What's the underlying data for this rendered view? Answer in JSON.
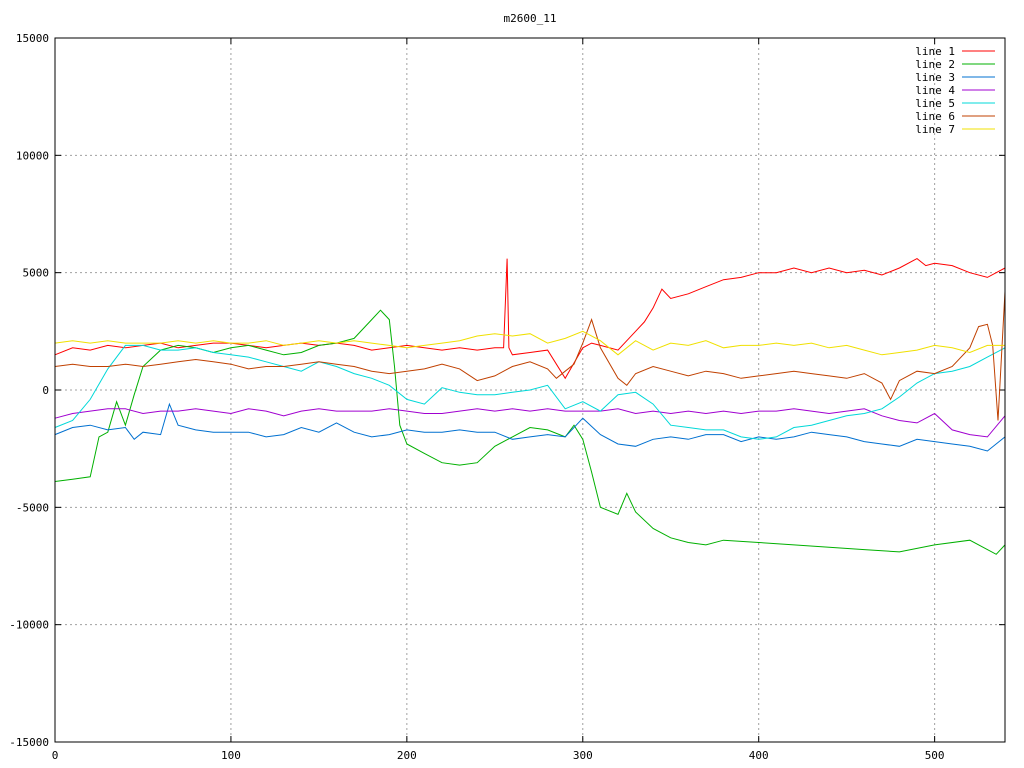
{
  "chart_data": {
    "type": "line",
    "title": "m2600_11",
    "xlabel": "",
    "ylabel": "",
    "xlim": [
      0,
      540
    ],
    "ylim": [
      -15000,
      15000
    ],
    "xticks": [
      0,
      100,
      200,
      300,
      400,
      500
    ],
    "yticks": [
      -15000,
      -10000,
      -5000,
      0,
      5000,
      10000,
      15000
    ],
    "grid": true,
    "legend_position": "top-right",
    "series": [
      {
        "name": "line 1",
        "color": "#ff0000",
        "x": [
          0,
          10,
          20,
          30,
          40,
          50,
          60,
          70,
          80,
          90,
          100,
          110,
          120,
          130,
          140,
          150,
          160,
          170,
          180,
          190,
          200,
          210,
          220,
          230,
          240,
          250,
          255,
          257,
          258,
          260,
          270,
          280,
          290,
          300,
          305,
          310,
          320,
          325,
          330,
          335,
          340,
          345,
          350,
          360,
          370,
          380,
          390,
          400,
          410,
          420,
          430,
          440,
          450,
          460,
          470,
          480,
          490,
          495,
          500,
          510,
          520,
          530,
          540
        ],
        "y": [
          1500,
          1800,
          1700,
          1900,
          1800,
          1900,
          2000,
          1800,
          1900,
          2000,
          2000,
          1900,
          1800,
          1900,
          2000,
          1900,
          2000,
          1900,
          1700,
          1800,
          1900,
          1800,
          1700,
          1800,
          1700,
          1800,
          1800,
          5600,
          1800,
          1500,
          1600,
          1700,
          500,
          1800,
          2000,
          1900,
          1700,
          2100,
          2500,
          2900,
          3500,
          4300,
          3900,
          4100,
          4400,
          4700,
          4800,
          5000,
          5000,
          5200,
          5000,
          5200,
          5000,
          5100,
          4900,
          5200,
          5600,
          5300,
          5400,
          5300,
          5000,
          4800,
          5200
        ]
      },
      {
        "name": "line 2",
        "color": "#00b000",
        "x": [
          0,
          10,
          20,
          25,
          30,
          35,
          40,
          45,
          50,
          60,
          70,
          80,
          90,
          100,
          110,
          120,
          130,
          140,
          150,
          160,
          170,
          180,
          185,
          190,
          193,
          196,
          200,
          210,
          220,
          230,
          240,
          250,
          260,
          270,
          280,
          290,
          295,
          300,
          305,
          310,
          320,
          325,
          330,
          340,
          350,
          360,
          370,
          380,
          400,
          420,
          440,
          460,
          480,
          500,
          520,
          535,
          540
        ],
        "y": [
          -3900,
          -3800,
          -3700,
          -2000,
          -1800,
          -500,
          -1500,
          -200,
          1000,
          1700,
          1900,
          1800,
          1600,
          1800,
          1900,
          1700,
          1500,
          1600,
          1900,
          2000,
          2200,
          3000,
          3400,
          3000,
          1000,
          -1500,
          -2300,
          -2700,
          -3100,
          -3200,
          -3100,
          -2400,
          -2000,
          -1600,
          -1700,
          -2000,
          -1500,
          -2100,
          -3500,
          -5000,
          -5300,
          -4400,
          -5200,
          -5900,
          -6300,
          -6500,
          -6600,
          -6400,
          -6500,
          -6600,
          -6700,
          -6800,
          -6900,
          -6600,
          -6400,
          -7000,
          -6600
        ]
      },
      {
        "name": "line 3",
        "color": "#0070d0",
        "x": [
          0,
          10,
          20,
          30,
          40,
          45,
          50,
          60,
          65,
          70,
          80,
          90,
          100,
          110,
          120,
          130,
          140,
          150,
          160,
          170,
          180,
          190,
          200,
          210,
          220,
          230,
          240,
          250,
          260,
          270,
          280,
          290,
          300,
          310,
          320,
          330,
          340,
          350,
          360,
          370,
          380,
          390,
          400,
          410,
          420,
          430,
          440,
          450,
          460,
          470,
          480,
          490,
          500,
          510,
          520,
          530,
          540
        ],
        "y": [
          -1900,
          -1600,
          -1500,
          -1700,
          -1600,
          -2100,
          -1800,
          -1900,
          -600,
          -1500,
          -1700,
          -1800,
          -1800,
          -1800,
          -2000,
          -1900,
          -1600,
          -1800,
          -1400,
          -1800,
          -2000,
          -1900,
          -1700,
          -1800,
          -1800,
          -1700,
          -1800,
          -1800,
          -2100,
          -2000,
          -1900,
          -2000,
          -1200,
          -1900,
          -2300,
          -2400,
          -2100,
          -2000,
          -2100,
          -1900,
          -1900,
          -2200,
          -2000,
          -2100,
          -2000,
          -1800,
          -1900,
          -2000,
          -2200,
          -2300,
          -2400,
          -2100,
          -2200,
          -2300,
          -2400,
          -2600,
          -2000
        ]
      },
      {
        "name": "line 4",
        "color": "#a000d0",
        "x": [
          0,
          10,
          20,
          30,
          40,
          50,
          60,
          70,
          80,
          90,
          100,
          110,
          120,
          130,
          140,
          150,
          160,
          170,
          180,
          190,
          200,
          210,
          220,
          230,
          240,
          250,
          260,
          270,
          280,
          290,
          300,
          310,
          320,
          330,
          340,
          350,
          360,
          370,
          380,
          390,
          400,
          410,
          420,
          430,
          440,
          450,
          460,
          470,
          480,
          490,
          500,
          510,
          520,
          530,
          540
        ],
        "y": [
          -1200,
          -1000,
          -900,
          -800,
          -800,
          -1000,
          -900,
          -900,
          -800,
          -900,
          -1000,
          -800,
          -900,
          -1100,
          -900,
          -800,
          -900,
          -900,
          -900,
          -800,
          -900,
          -1000,
          -1000,
          -900,
          -800,
          -900,
          -800,
          -900,
          -800,
          -900,
          -900,
          -900,
          -800,
          -1000,
          -900,
          -1000,
          -900,
          -1000,
          -900,
          -1000,
          -900,
          -900,
          -800,
          -900,
          -1000,
          -900,
          -800,
          -1100,
          -1300,
          -1400,
          -1000,
          -1700,
          -1900,
          -2000,
          -1100
        ]
      },
      {
        "name": "line 5",
        "color": "#00d8d8",
        "x": [
          0,
          10,
          20,
          30,
          40,
          50,
          60,
          70,
          80,
          90,
          100,
          110,
          120,
          130,
          140,
          150,
          160,
          170,
          180,
          190,
          200,
          210,
          220,
          230,
          240,
          250,
          260,
          270,
          280,
          290,
          300,
          310,
          320,
          330,
          340,
          350,
          360,
          370,
          380,
          390,
          400,
          410,
          420,
          430,
          440,
          450,
          460,
          470,
          480,
          490,
          500,
          510,
          520,
          530,
          540
        ],
        "y": [
          -1600,
          -1300,
          -400,
          900,
          1900,
          1900,
          1700,
          1700,
          1800,
          1600,
          1500,
          1400,
          1200,
          1000,
          800,
          1200,
          1000,
          700,
          500,
          200,
          -400,
          -600,
          100,
          -100,
          -200,
          -200,
          -100,
          0,
          200,
          -800,
          -500,
          -900,
          -200,
          -100,
          -600,
          -1500,
          -1600,
          -1700,
          -1700,
          -2000,
          -2100,
          -2000,
          -1600,
          -1500,
          -1300,
          -1100,
          -1000,
          -800,
          -300,
          300,
          700,
          800,
          1000,
          1400,
          1800
        ]
      },
      {
        "name": "line 6",
        "color": "#c04000",
        "x": [
          0,
          10,
          20,
          30,
          40,
          50,
          60,
          70,
          80,
          90,
          100,
          110,
          120,
          130,
          140,
          150,
          160,
          170,
          180,
          190,
          200,
          210,
          220,
          230,
          240,
          250,
          260,
          270,
          280,
          285,
          290,
          295,
          300,
          305,
          310,
          320,
          325,
          330,
          340,
          350,
          360,
          370,
          380,
          390,
          400,
          410,
          420,
          430,
          440,
          450,
          460,
          470,
          475,
          480,
          490,
          500,
          510,
          520,
          525,
          530,
          533,
          536,
          540
        ],
        "y": [
          1000,
          1100,
          1000,
          1000,
          1100,
          1000,
          1100,
          1200,
          1300,
          1200,
          1100,
          900,
          1000,
          1000,
          1100,
          1200,
          1100,
          1000,
          800,
          700,
          800,
          900,
          1100,
          900,
          400,
          600,
          1000,
          1200,
          900,
          500,
          800,
          1100,
          2000,
          3000,
          1800,
          500,
          200,
          700,
          1000,
          800,
          600,
          800,
          700,
          500,
          600,
          700,
          800,
          700,
          600,
          500,
          700,
          300,
          -400,
          400,
          800,
          700,
          1000,
          1800,
          2700,
          2800,
          1900,
          -1300,
          4200
        ]
      },
      {
        "name": "line 7",
        "color": "#f0e000",
        "x": [
          0,
          10,
          20,
          30,
          40,
          50,
          60,
          70,
          80,
          90,
          100,
          110,
          120,
          130,
          140,
          150,
          160,
          170,
          180,
          190,
          200,
          210,
          220,
          230,
          240,
          250,
          260,
          270,
          280,
          290,
          300,
          310,
          320,
          330,
          340,
          350,
          360,
          370,
          380,
          390,
          400,
          410,
          420,
          430,
          440,
          450,
          460,
          470,
          480,
          490,
          500,
          510,
          520,
          530,
          540
        ],
        "y": [
          2000,
          2100,
          2000,
          2100,
          2000,
          2000,
          2000,
          2100,
          2000,
          2100,
          2000,
          2000,
          2100,
          1900,
          2000,
          2100,
          2000,
          2100,
          2000,
          1900,
          1800,
          1900,
          2000,
          2100,
          2300,
          2400,
          2300,
          2400,
          2000,
          2200,
          2500,
          2100,
          1500,
          2100,
          1700,
          2000,
          1900,
          2100,
          1800,
          1900,
          1900,
          2000,
          1900,
          2000,
          1800,
          1900,
          1700,
          1500,
          1600,
          1700,
          1900,
          1800,
          1600,
          1900,
          1900
        ]
      }
    ]
  }
}
